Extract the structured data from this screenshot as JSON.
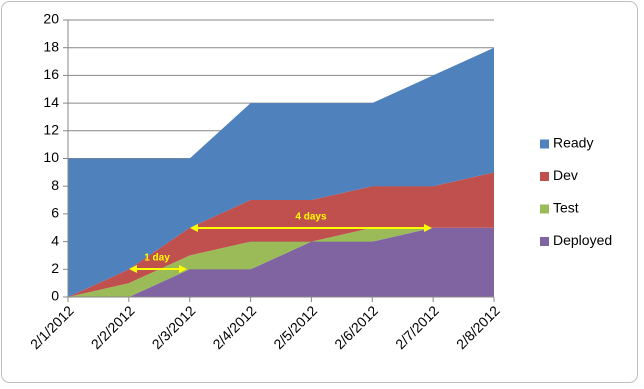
{
  "chart_data": {
    "type": "stacked-area",
    "categories": [
      "2/1/2012",
      "2/2/2012",
      "2/3/2012",
      "2/4/2012",
      "2/5/2012",
      "2/6/2012",
      "2/7/2012",
      "2/8/2012"
    ],
    "series": [
      {
        "name": "Ready",
        "color": "#4f81bd",
        "values": [
          10,
          8,
          5,
          7,
          7,
          6,
          8,
          9
        ]
      },
      {
        "name": "Dev",
        "color": "#c0504d",
        "values": [
          0,
          1,
          2,
          3,
          3,
          3,
          3,
          4
        ]
      },
      {
        "name": "Test",
        "color": "#9bbb59",
        "values": [
          0,
          1,
          1,
          2,
          0,
          1,
          0,
          0
        ]
      },
      {
        "name": "Deployed",
        "color": "#8064a2",
        "values": [
          0,
          0,
          2,
          2,
          4,
          4,
          5,
          5
        ]
      }
    ],
    "ylim": [
      0,
      20
    ],
    "yticks": [
      0,
      2,
      4,
      6,
      8,
      10,
      12,
      14,
      16,
      18,
      20
    ],
    "grid": true,
    "legend": "right",
    "annotations": [
      "1 day",
      "4 days"
    ]
  }
}
